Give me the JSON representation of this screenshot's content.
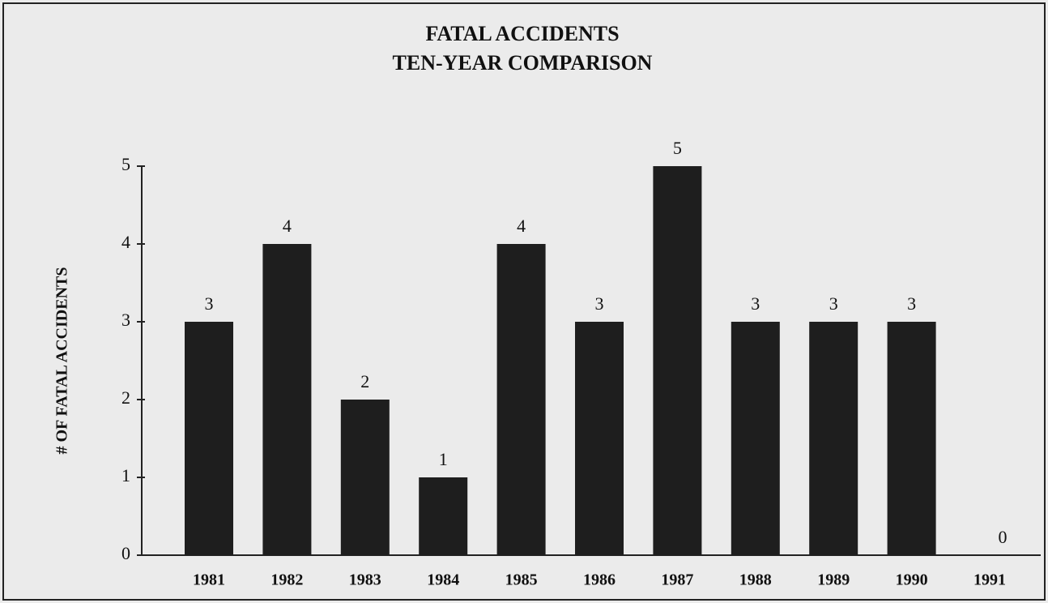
{
  "chart_data": {
    "type": "bar",
    "title": "FATAL ACCIDENTS",
    "subtitle": "TEN-YEAR COMPARISON",
    "y_label": "# OF FATAL ACCIDENTS",
    "categories": [
      "1981",
      "1982",
      "1983",
      "1984",
      "1985",
      "1986",
      "1987",
      "1988",
      "1989",
      "1990",
      "1991"
    ],
    "values": [
      3,
      4,
      2,
      1,
      4,
      3,
      5,
      3,
      3,
      3,
      0
    ],
    "color": "#1e1e1e",
    "ylim": [
      0,
      5
    ],
    "yticks": [
      0,
      1,
      2,
      3,
      4,
      5
    ],
    "grid": false
  }
}
